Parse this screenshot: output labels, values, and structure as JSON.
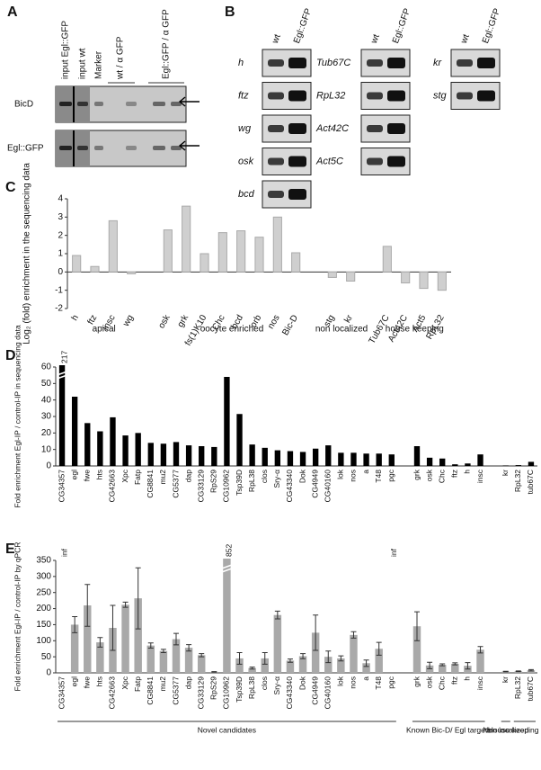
{
  "panel_A": {
    "label": "A",
    "lanes": [
      "input Egl::GFP",
      "input wt",
      "Marker",
      "wt / α GFP",
      "Egl::GFP / α GFP"
    ],
    "rows": [
      "BicD",
      "Egl::GFP"
    ]
  },
  "panel_B": {
    "label": "B",
    "columns": [
      "wt",
      "Egl::GFP"
    ],
    "genes_left": [
      "h",
      "ftz",
      "wg",
      "osk",
      "bcd"
    ],
    "genes_middle": [
      "Tub67C",
      "RpL32",
      "Act42C",
      "Act5C"
    ],
    "genes_right": [
      "kr",
      "stg"
    ]
  },
  "chart_data": [
    {
      "type": "bar",
      "label": "C",
      "y_label": "Log₂ (fold) enrichment in the sequencing data",
      "color": "#cfcfcf",
      "categories": [
        "h",
        "ftz",
        "insc",
        "wg",
        null,
        "osk",
        "grk",
        "fs(1)K10",
        "Chc",
        "bcd",
        "orb",
        "nos",
        "Bic-D",
        null,
        "stg",
        "kr",
        null,
        "Tub67C",
        "Act42C",
        "Act5",
        "RpL32"
      ],
      "values": [
        0.9,
        0.3,
        2.8,
        -0.1,
        null,
        2.3,
        3.6,
        1.0,
        2.15,
        2.25,
        1.9,
        3.0,
        1.05,
        null,
        -0.3,
        -0.5,
        null,
        1.4,
        -0.6,
        -0.9,
        -1.0
      ],
      "ylim": [
        -2,
        4
      ],
      "yticks": [
        -2,
        -1,
        0,
        1,
        2,
        3,
        4
      ],
      "groups": [
        "apical",
        "oocyte enriched",
        "non localized",
        "house keeping"
      ]
    },
    {
      "type": "bar",
      "label": "D",
      "y_label": "Fold enrichment Egl-IP / control-IP in sequencing data",
      "color": "#000000",
      "categories": [
        "CG34357",
        "egl",
        "fwe",
        "hts",
        "CG42663",
        "Xpc",
        "Fatp",
        "CG8841",
        "mu2",
        "CG5377",
        "dap",
        "CG33129",
        "RpS29",
        "CG10962",
        "Tsp39D",
        "RpL38",
        "clos",
        "Sry-α",
        "CG43340",
        "Dok",
        "CG4949",
        "CG40160",
        "lok",
        "nos",
        "a",
        "T48",
        "pgc",
        null,
        "grk",
        "osk",
        "Chc",
        "ftz",
        "h",
        "insc",
        null,
        "kr",
        "RpL32",
        "tub67C"
      ],
      "values": [
        217,
        42,
        26,
        21,
        29.5,
        18.5,
        20,
        14,
        13.5,
        14.5,
        12.5,
        12,
        11.5,
        54,
        31.5,
        13,
        11,
        9.5,
        9,
        8.5,
        10.5,
        12.5,
        8,
        8,
        7.5,
        7.5,
        7,
        null,
        12,
        5,
        4.5,
        1,
        1.5,
        7,
        null,
        0.3,
        0.5,
        2.5
      ],
      "value_labels": [
        "217",
        null,
        null,
        null,
        null,
        null,
        null,
        null,
        null,
        null,
        null,
        null,
        null,
        null,
        null,
        null,
        null,
        null,
        null,
        null,
        null,
        null,
        null,
        null,
        null,
        null,
        null,
        null,
        null,
        null,
        null,
        null,
        null,
        null,
        null,
        null,
        null,
        null
      ],
      "ylim": [
        0,
        60
      ],
      "yticks": [
        0,
        10,
        20,
        30,
        40,
        50,
        60
      ]
    },
    {
      "type": "bar",
      "label": "E",
      "y_label": "Fold enrichment Egl-IP / control-IP by qPCR",
      "color": "#a9a9a9",
      "categories": [
        "CG34357",
        "egl",
        "fwe",
        "hts",
        "CG42663",
        "Xpc",
        "Fatp",
        "CG8841",
        "mu2",
        "CG5377",
        "dap",
        "CG33129",
        "RpS29",
        "CG10962",
        "Tsp39D",
        "RpL38",
        "clos",
        "Sry-α",
        "CG43340",
        "Dok",
        "CG4949",
        "CG40160",
        "lok",
        "nos",
        "a",
        "T48",
        "pgc",
        null,
        "grk",
        "osk",
        "Chc",
        "ftz",
        "h",
        "insc",
        null,
        "kr",
        "RpL32",
        "tub67C"
      ],
      "values": [
        null,
        150,
        210,
        95,
        140,
        212,
        232,
        85,
        68,
        105,
        78,
        55,
        3,
        852,
        45,
        15,
        45,
        180,
        38,
        52,
        125,
        50,
        45,
        118,
        30,
        75,
        null,
        null,
        145,
        23,
        25,
        28,
        22,
        72,
        null,
        4,
        5,
        8
      ],
      "errors": [
        null,
        25,
        65,
        15,
        70,
        8,
        95,
        8,
        5,
        18,
        10,
        5,
        1,
        null,
        18,
        3,
        18,
        12,
        5,
        8,
        55,
        18,
        8,
        10,
        10,
        20,
        null,
        null,
        45,
        10,
        3,
        3,
        10,
        10,
        null,
        1,
        1,
        2
      ],
      "value_labels": [
        "inf",
        null,
        null,
        null,
        null,
        null,
        null,
        null,
        null,
        null,
        null,
        null,
        null,
        "852",
        null,
        null,
        null,
        null,
        null,
        null,
        null,
        null,
        null,
        null,
        null,
        null,
        "inf",
        null,
        null,
        null,
        null,
        null,
        null,
        null,
        null,
        null,
        null,
        null
      ],
      "ylim": [
        0,
        350
      ],
      "yticks": [
        0,
        50,
        100,
        150,
        200,
        250,
        300,
        350
      ],
      "groups": [
        "Novel candidates",
        "Known Bic-D/ Egl targets",
        "Non localized",
        "House keeping genes"
      ]
    }
  ]
}
